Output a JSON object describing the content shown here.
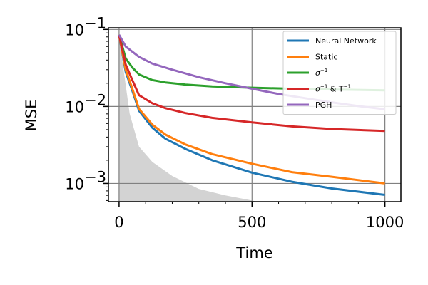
{
  "chart_data": {
    "type": "line",
    "xlabel": "Time",
    "ylabel": "MSE",
    "xlim": [
      -40,
      1060
    ],
    "ylim": [
      0.00058,
      0.105
    ],
    "yscale": "log",
    "grid": true,
    "legend_position": "top-right",
    "x_ticks": [
      {
        "value": 0,
        "label": "0"
      },
      {
        "value": 500,
        "label": "500"
      },
      {
        "value": 1000,
        "label": "1000"
      }
    ],
    "y_ticks": [
      {
        "value": 0.1,
        "base": "10",
        "exp": "−1"
      },
      {
        "value": 0.01,
        "base": "10",
        "exp": "−2"
      },
      {
        "value": 0.001,
        "base": "10",
        "exp": "−3"
      }
    ],
    "shaded_region": {
      "color": "#d3d3d3",
      "x": [
        0,
        8,
        20,
        40,
        75,
        125,
        200,
        300,
        400,
        500,
        520
      ],
      "y": [
        0.08,
        0.05,
        0.025,
        0.008,
        0.003,
        0.0019,
        0.00125,
        0.00085,
        0.0007,
        0.0006,
        0.00058
      ]
    },
    "series": [
      {
        "name": "Neural Network",
        "color": "#1f77b4",
        "x": [
          0,
          25,
          50,
          75,
          125,
          175,
          250,
          350,
          500,
          650,
          800,
          1000
        ],
        "y": [
          0.085,
          0.028,
          0.016,
          0.0088,
          0.0053,
          0.0038,
          0.0028,
          0.002,
          0.00138,
          0.00105,
          0.00086,
          0.00071
        ]
      },
      {
        "name": "Static",
        "color": "#ff7f0e",
        "x": [
          0,
          25,
          50,
          75,
          125,
          175,
          250,
          350,
          500,
          650,
          800,
          1000
        ],
        "y": [
          0.085,
          0.03,
          0.017,
          0.0093,
          0.0058,
          0.0043,
          0.0032,
          0.0024,
          0.0018,
          0.0014,
          0.00122,
          0.001
        ]
      },
      {
        "name": "σ⁻¹",
        "legend_label": {
          "base": "σ",
          "sup": "−1",
          "tail": "",
          "tail_sup": ""
        },
        "color": "#2ca02c",
        "x": [
          0,
          25,
          50,
          75,
          125,
          175,
          250,
          350,
          500,
          650,
          800,
          1000
        ],
        "y": [
          0.085,
          0.042,
          0.032,
          0.026,
          0.022,
          0.0205,
          0.0192,
          0.0182,
          0.0175,
          0.017,
          0.0166,
          0.0162
        ]
      },
      {
        "name": "σ⁻¹ & T⁻¹",
        "legend_label": {
          "base": "σ",
          "sup": "−1",
          "tail": " & T",
          "tail_sup": "−1"
        },
        "color": "#d62728",
        "x": [
          0,
          25,
          50,
          75,
          125,
          175,
          250,
          350,
          500,
          650,
          800,
          1000
        ],
        "y": [
          0.085,
          0.035,
          0.022,
          0.014,
          0.011,
          0.0095,
          0.0082,
          0.0071,
          0.0062,
          0.0055,
          0.0051,
          0.0048
        ]
      },
      {
        "name": "PGH",
        "color": "#9467bd",
        "x": [
          0,
          25,
          75,
          125,
          200,
          300,
          400,
          500,
          600,
          700,
          800,
          900,
          1000
        ],
        "y": [
          0.085,
          0.06,
          0.044,
          0.036,
          0.03,
          0.024,
          0.02,
          0.017,
          0.0145,
          0.0128,
          0.0113,
          0.0101,
          0.0092
        ]
      }
    ]
  }
}
